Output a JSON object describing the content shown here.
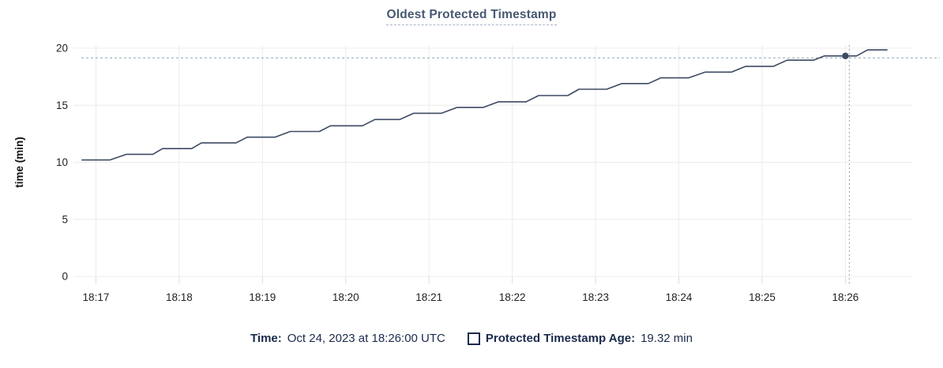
{
  "title": "Oldest Protected Timestamp",
  "colors": {
    "title": "#475872",
    "line": "#3e4a63",
    "grid": "#ececec",
    "tick_mark": "#dcdcdc",
    "tick_text": "#222222",
    "axis_label": "#111111",
    "crosshair": "#9db0bf",
    "legend_text": "#1b2b4c",
    "background": "#ffffff"
  },
  "legend": {
    "time_label": "Time:",
    "time_value": "Oct 24, 2023 at 18:26:00 UTC",
    "series_label": "Protected Timestamp Age:",
    "series_value": "19.32 min"
  },
  "chart_data": {
    "type": "line",
    "title": "Oldest Protected Timestamp",
    "xlabel": "",
    "ylabel": "time (min)",
    "grid": true,
    "legend_position": "bottom",
    "y_domain": [
      0,
      20
    ],
    "y_ticks": [
      0,
      5,
      10,
      15,
      20
    ],
    "x_tick_labels": [
      "18:17",
      "18:18",
      "18:19",
      "18:20",
      "18:21",
      "18:22",
      "18:23",
      "18:24",
      "18:25",
      "18:26"
    ],
    "x_tick_seconds": [
      0,
      60,
      120,
      180,
      240,
      300,
      360,
      420,
      480,
      540
    ],
    "x_domain_seconds": [
      -10.5,
      587
    ],
    "series": [
      {
        "name": "Protected Timestamp Age",
        "unit": "min",
        "points_s_v": [
          [
            -10,
            10.2
          ],
          [
            10,
            10.2
          ],
          [
            22,
            10.7
          ],
          [
            41,
            10.7
          ],
          [
            48,
            11.2
          ],
          [
            69,
            11.2
          ],
          [
            76,
            11.7
          ],
          [
            101,
            11.7
          ],
          [
            109,
            12.2
          ],
          [
            129,
            12.2
          ],
          [
            140,
            12.7
          ],
          [
            161,
            12.7
          ],
          [
            169,
            13.2
          ],
          [
            192,
            13.2
          ],
          [
            201,
            13.75
          ],
          [
            219,
            13.75
          ],
          [
            229,
            14.3
          ],
          [
            249,
            14.3
          ],
          [
            260,
            14.8
          ],
          [
            279,
            14.8
          ],
          [
            290,
            15.3
          ],
          [
            310,
            15.3
          ],
          [
            319,
            15.85
          ],
          [
            340,
            15.85
          ],
          [
            348,
            16.4
          ],
          [
            368,
            16.4
          ],
          [
            379,
            16.9
          ],
          [
            398,
            16.9
          ],
          [
            407,
            17.4
          ],
          [
            427,
            17.4
          ],
          [
            439,
            17.9
          ],
          [
            458,
            17.9
          ],
          [
            468,
            18.4
          ],
          [
            488,
            18.4
          ],
          [
            498,
            18.95
          ],
          [
            517,
            18.95
          ],
          [
            525,
            19.32
          ],
          [
            548,
            19.32
          ],
          [
            556,
            19.85
          ],
          [
            570,
            19.85
          ]
        ]
      }
    ],
    "crosshair": {
      "time_label": "18:26",
      "s": 540,
      "value": 19.32,
      "value_text": "19.32 min"
    }
  }
}
